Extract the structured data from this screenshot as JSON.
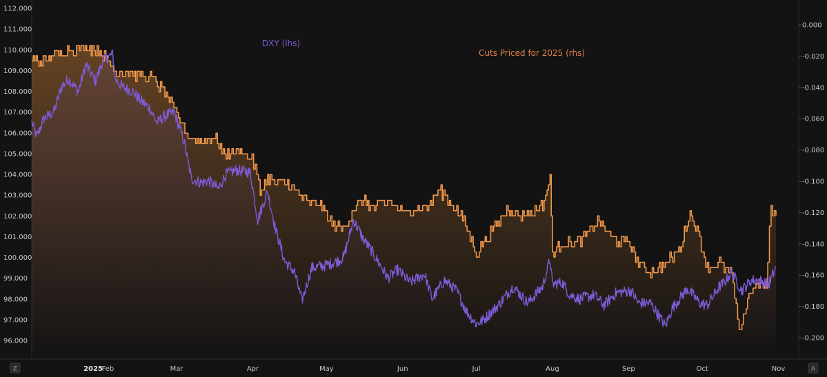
{
  "chart_data": {
    "type": "line",
    "title": "",
    "x_range": [
      "2025-01-01",
      "2025-10-31"
    ],
    "x_ticks": [
      {
        "label": "2025",
        "date": "2025-01-01"
      },
      {
        "label": "Feb",
        "date": "2025-02-01"
      },
      {
        "label": "Mar",
        "date": "2025-03-01"
      },
      {
        "label": "Apr",
        "date": "2025-04-01"
      },
      {
        "label": "May",
        "date": "2025-05-01"
      },
      {
        "label": "Jun",
        "date": "2025-06-01"
      },
      {
        "label": "Jul",
        "date": "2025-07-01"
      },
      {
        "label": "Aug",
        "date": "2025-08-01"
      },
      {
        "label": "Sep",
        "date": "2025-09-01"
      },
      {
        "label": "Oct",
        "date": "2025-10-01"
      },
      {
        "label": "Nov",
        "date": "2025-11-01"
      }
    ],
    "left_axis": {
      "ylim": [
        95.5,
        112.5
      ],
      "ticks": [
        "96.000",
        "97.000",
        "98.000",
        "99.000",
        "100.000",
        "101.000",
        "102.000",
        "103.000",
        "104.000",
        "105.000",
        "106.000",
        "107.000",
        "108.000",
        "109.000",
        "110.000",
        "111.000",
        "112.000"
      ]
    },
    "right_axis": {
      "ylim": [
        -0.21,
        0.008
      ],
      "ticks": [
        "0.000",
        "-0.020",
        "-0.040",
        "-0.060",
        "-0.080",
        "-0.100",
        "-0.120",
        "-0.140",
        "-0.160",
        "-0.180",
        "-0.200"
      ]
    },
    "series": [
      {
        "name": "DXY (lhs)",
        "axis": "left",
        "color": "#7e5bd6",
        "points": [
          [
            "2025-01-01",
            106.5
          ],
          [
            "2025-01-03",
            105.8
          ],
          [
            "2025-01-06",
            106.7
          ],
          [
            "2025-01-10",
            107.0
          ],
          [
            "2025-01-13",
            108.2
          ],
          [
            "2025-01-16",
            108.6
          ],
          [
            "2025-01-20",
            108.0
          ],
          [
            "2025-01-23",
            109.3
          ],
          [
            "2025-01-27",
            108.5
          ],
          [
            "2025-01-30",
            109.5
          ],
          [
            "2025-02-03",
            109.8
          ],
          [
            "2025-02-04",
            108.6
          ],
          [
            "2025-02-07",
            108.2
          ],
          [
            "2025-02-11",
            108.0
          ],
          [
            "2025-02-14",
            107.6
          ],
          [
            "2025-02-18",
            107.2
          ],
          [
            "2025-02-21",
            106.5
          ],
          [
            "2025-02-24",
            106.8
          ],
          [
            "2025-02-28",
            107.0
          ],
          [
            "2025-03-04",
            105.6
          ],
          [
            "2025-03-07",
            103.8
          ],
          [
            "2025-03-11",
            103.6
          ],
          [
            "2025-03-14",
            103.7
          ],
          [
            "2025-03-18",
            103.3
          ],
          [
            "2025-03-21",
            104.0
          ],
          [
            "2025-03-25",
            104.2
          ],
          [
            "2025-03-31",
            104.1
          ],
          [
            "2025-04-03",
            101.8
          ],
          [
            "2025-04-07",
            103.2
          ],
          [
            "2025-04-10",
            101.5
          ],
          [
            "2025-04-14",
            99.8
          ],
          [
            "2025-04-18",
            99.3
          ],
          [
            "2025-04-21",
            97.9
          ],
          [
            "2025-04-25",
            99.5
          ],
          [
            "2025-04-30",
            99.6
          ],
          [
            "2025-05-05",
            99.8
          ],
          [
            "2025-05-08",
            100.0
          ],
          [
            "2025-05-12",
            101.8
          ],
          [
            "2025-05-16",
            100.9
          ],
          [
            "2025-05-20",
            100.2
          ],
          [
            "2025-05-26",
            99.0
          ],
          [
            "2025-05-30",
            99.4
          ],
          [
            "2025-06-04",
            98.8
          ],
          [
            "2025-06-10",
            99.2
          ],
          [
            "2025-06-13",
            98.0
          ],
          [
            "2025-06-18",
            98.9
          ],
          [
            "2025-06-23",
            98.4
          ],
          [
            "2025-06-27",
            97.4
          ],
          [
            "2025-07-01",
            96.8
          ],
          [
            "2025-07-04",
            97.0
          ],
          [
            "2025-07-10",
            97.7
          ],
          [
            "2025-07-16",
            98.6
          ],
          [
            "2025-07-22",
            97.8
          ],
          [
            "2025-07-28",
            98.6
          ],
          [
            "2025-07-31",
            99.9
          ],
          [
            "2025-08-01",
            98.7
          ],
          [
            "2025-08-05",
            98.8
          ],
          [
            "2025-08-08",
            98.2
          ],
          [
            "2025-08-12",
            98.0
          ],
          [
            "2025-08-18",
            98.2
          ],
          [
            "2025-08-22",
            97.7
          ],
          [
            "2025-08-27",
            98.3
          ],
          [
            "2025-09-02",
            98.4
          ],
          [
            "2025-09-05",
            97.8
          ],
          [
            "2025-09-10",
            97.8
          ],
          [
            "2025-09-16",
            96.7
          ],
          [
            "2025-09-19",
            97.6
          ],
          [
            "2025-09-25",
            98.5
          ],
          [
            "2025-09-30",
            97.8
          ],
          [
            "2025-10-03",
            97.7
          ],
          [
            "2025-10-08",
            98.6
          ],
          [
            "2025-10-10",
            98.8
          ],
          [
            "2025-10-13",
            99.3
          ],
          [
            "2025-10-17",
            98.4
          ],
          [
            "2025-10-21",
            98.9
          ],
          [
            "2025-10-24",
            98.9
          ],
          [
            "2025-10-28",
            98.7
          ],
          [
            "2025-10-31",
            99.5
          ]
        ]
      },
      {
        "name": "Cuts Priced for 2025 (rhs)",
        "axis": "right",
        "color": "#f0974a",
        "points": [
          [
            "2025-01-01",
            -0.023
          ],
          [
            "2025-01-08",
            -0.023
          ],
          [
            "2025-01-09",
            -0.019
          ],
          [
            "2025-01-15",
            -0.016
          ],
          [
            "2025-01-24",
            -0.014
          ],
          [
            "2025-01-30",
            -0.019
          ],
          [
            "2025-02-04",
            -0.029
          ],
          [
            "2025-02-10",
            -0.031
          ],
          [
            "2025-02-20",
            -0.035
          ],
          [
            "2025-02-26",
            -0.048
          ],
          [
            "2025-03-03",
            -0.063
          ],
          [
            "2025-03-05",
            -0.07
          ],
          [
            "2025-03-10",
            -0.075
          ],
          [
            "2025-03-17",
            -0.072
          ],
          [
            "2025-03-20",
            -0.083
          ],
          [
            "2025-03-27",
            -0.08
          ],
          [
            "2025-03-31",
            -0.085
          ],
          [
            "2025-04-02",
            -0.092
          ],
          [
            "2025-04-04",
            -0.108
          ],
          [
            "2025-04-07",
            -0.097
          ],
          [
            "2025-04-10",
            -0.101
          ],
          [
            "2025-04-14",
            -0.1
          ],
          [
            "2025-04-18",
            -0.106
          ],
          [
            "2025-04-23",
            -0.113
          ],
          [
            "2025-04-28",
            -0.115
          ],
          [
            "2025-05-02",
            -0.125
          ],
          [
            "2025-05-07",
            -0.131
          ],
          [
            "2025-05-12",
            -0.118
          ],
          [
            "2025-05-16",
            -0.111
          ],
          [
            "2025-05-20",
            -0.117
          ],
          [
            "2025-05-27",
            -0.113
          ],
          [
            "2025-06-02",
            -0.121
          ],
          [
            "2025-06-06",
            -0.116
          ],
          [
            "2025-06-11",
            -0.116
          ],
          [
            "2025-06-16",
            -0.106
          ],
          [
            "2025-06-20",
            -0.112
          ],
          [
            "2025-06-26",
            -0.125
          ],
          [
            "2025-07-01",
            -0.146
          ],
          [
            "2025-07-04",
            -0.138
          ],
          [
            "2025-07-08",
            -0.131
          ],
          [
            "2025-07-14",
            -0.117
          ],
          [
            "2025-07-18",
            -0.122
          ],
          [
            "2025-07-23",
            -0.12
          ],
          [
            "2025-07-28",
            -0.115
          ],
          [
            "2025-07-31",
            -0.098
          ],
          [
            "2025-08-01",
            -0.146
          ],
          [
            "2025-08-05",
            -0.14
          ],
          [
            "2025-08-10",
            -0.14
          ],
          [
            "2025-08-15",
            -0.135
          ],
          [
            "2025-08-20",
            -0.125
          ],
          [
            "2025-08-26",
            -0.138
          ],
          [
            "2025-09-01",
            -0.139
          ],
          [
            "2025-09-05",
            -0.152
          ],
          [
            "2025-09-10",
            -0.158
          ],
          [
            "2025-09-16",
            -0.153
          ],
          [
            "2025-09-22",
            -0.143
          ],
          [
            "2025-09-26",
            -0.12
          ],
          [
            "2025-09-30",
            -0.137
          ],
          [
            "2025-10-03",
            -0.156
          ],
          [
            "2025-10-08",
            -0.152
          ],
          [
            "2025-10-13",
            -0.16
          ],
          [
            "2025-10-16",
            -0.197
          ],
          [
            "2025-10-20",
            -0.172
          ],
          [
            "2025-10-24",
            -0.165
          ],
          [
            "2025-10-27",
            -0.168
          ],
          [
            "2025-10-29",
            -0.115
          ],
          [
            "2025-10-31",
            -0.123
          ]
        ]
      }
    ],
    "grid": false,
    "legend": "inline labels"
  },
  "ui": {
    "left_corner_label": "Z",
    "right_corner_label": "A"
  },
  "colors": {
    "background": "#131313",
    "dxy": "#7e5bd6",
    "cuts": "#f0974a",
    "axis_text": "#c8c8c8"
  }
}
